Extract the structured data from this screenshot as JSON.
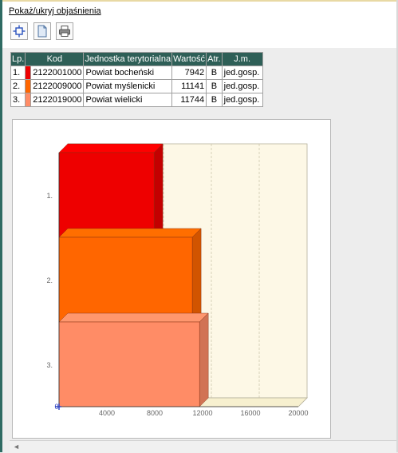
{
  "header": {
    "toggle_label": "Pokaż/ukryj objaśnienia"
  },
  "toolbar": {
    "buttons": [
      "fit-icon",
      "page-icon",
      "print-icon"
    ]
  },
  "table": {
    "headers": [
      "Lp.",
      "Kod",
      "Jednostka terytorialna",
      "Wartość",
      "Atr.",
      "J.m."
    ],
    "rows": [
      {
        "lp": "1.",
        "color": "#ee0000",
        "kod": "2122001000",
        "name": "Powiat bocheński",
        "value": "7942",
        "atr": "B",
        "jm": "jed.gosp."
      },
      {
        "lp": "2.",
        "color": "#ff6600",
        "kod": "2122009000",
        "name": "Powiat myślenicki",
        "value": "11141",
        "atr": "B",
        "jm": "jed.gosp."
      },
      {
        "lp": "3.",
        "color": "#ff8c66",
        "kod": "2122019000",
        "name": "Powiat wielicki",
        "value": "11744",
        "atr": "B",
        "jm": "jed.gosp."
      }
    ]
  },
  "chart_data": {
    "type": "bar",
    "orientation": "horizontal",
    "categories": [
      "1.",
      "2.",
      "3."
    ],
    "values": [
      7942,
      11141,
      11744
    ],
    "colors": [
      "#ee0000",
      "#ff6600",
      "#ff8c66"
    ],
    "xlim": [
      0,
      20000
    ],
    "xticks": [
      "0",
      "4000",
      "8000",
      "12000",
      "16000",
      "20000"
    ],
    "grid": true
  }
}
